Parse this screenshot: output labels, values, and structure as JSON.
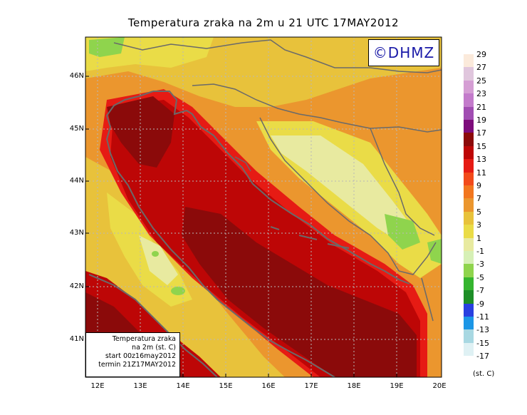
{
  "title": "Temperatura zraka na 2m u 21 UTC 17MAY2012",
  "logo": "©DHMZ",
  "info_box": {
    "line1": "Temperatura zraka",
    "line2": "na 2m (st. C)",
    "line3": "start 00z16may2012",
    "line4": "termin 21Z17MAY2012"
  },
  "latitude_labels": [
    "46N",
    "45N",
    "44N",
    "43N",
    "42N",
    "41N"
  ],
  "longitude_labels": [
    "12E",
    "13E",
    "14E",
    "15E",
    "16E",
    "17E",
    "18E",
    "19E",
    "20E"
  ],
  "legend": {
    "unit": "(st. C)",
    "labels": [
      "29",
      "27",
      "25",
      "23",
      "21",
      "19",
      "17",
      "15",
      "13",
      "11",
      "9",
      "7",
      "5",
      "3",
      "1",
      "-1",
      "-3",
      "-5",
      "-7",
      "-9",
      "-11",
      "-13",
      "-15",
      "-17"
    ],
    "colors": [
      "#fbeadb",
      "#e0c6dd",
      "#d59ed4",
      "#c37bcb",
      "#a14db2",
      "#7d0c7b",
      "#8b0a0a",
      "#bd0606",
      "#e61b14",
      "#f24a1a",
      "#f2761e",
      "#eb962e",
      "#e8c23b",
      "#eadc47",
      "#e8eaa0",
      "#d6f0b6",
      "#8fd44d",
      "#35b52f",
      "#1d8e27",
      "#2840e0",
      "#1b96e6",
      "#a8d8e2",
      "#dff1f4",
      "#ffffff"
    ]
  },
  "colors": {
    "sea_outer": "#8b0a0a",
    "sea_inner": "#bd0606",
    "coast": "#e61b14",
    "warm_land": "#eb962e",
    "mild_land": "#eadc47",
    "cool_land": "#e8eaa0",
    "mountain": "#8fd44d",
    "border_line": "#6a6a6a",
    "grid_line": "#b8b8b8"
  }
}
